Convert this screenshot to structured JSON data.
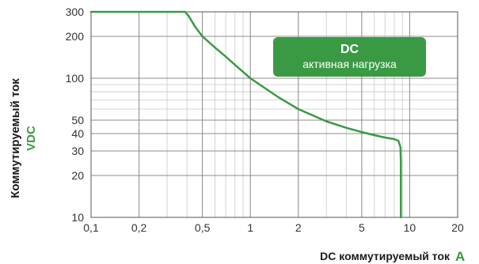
{
  "chart_data": {
    "type": "line",
    "xscale": "log",
    "yscale": "log",
    "xlim": [
      0.1,
      20
    ],
    "ylim": [
      10,
      300
    ],
    "x_ticks": [
      0.1,
      0.2,
      0.5,
      1,
      2,
      5,
      10,
      20
    ],
    "x_tick_labels": [
      "0,1",
      "0,2",
      "0,5",
      "1",
      "2",
      "5",
      "10",
      "20"
    ],
    "y_ticks": [
      10,
      20,
      30,
      40,
      50,
      100,
      200,
      300
    ],
    "y_tick_labels": [
      "10",
      "20",
      "30",
      "40",
      "50",
      "100",
      "200",
      "300"
    ],
    "grid": true,
    "xlabel": "DC коммутируемый ток",
    "xlabel_unit": "A",
    "ylabel": "Коммутируемый ток",
    "ylabel_unit": "VDC",
    "annotation": {
      "title": "DC",
      "subtitle": "активная нагрузка"
    },
    "colors": {
      "line": "#3a9a44",
      "badge": "#3a9a44",
      "grid": "#c8c8c8",
      "unit": "#3a9a44"
    },
    "series": [
      {
        "values": [
          {
            "x": 0.1,
            "y": 300
          },
          {
            "x": 0.39,
            "y": 300
          },
          {
            "x": 0.41,
            "y": 280
          },
          {
            "x": 0.45,
            "y": 235
          },
          {
            "x": 0.5,
            "y": 200
          },
          {
            "x": 0.6,
            "y": 166
          },
          {
            "x": 0.7,
            "y": 143
          },
          {
            "x": 0.8,
            "y": 125
          },
          {
            "x": 1,
            "y": 100
          },
          {
            "x": 1.5,
            "y": 73
          },
          {
            "x": 2,
            "y": 60
          },
          {
            "x": 3,
            "y": 49
          },
          {
            "x": 4,
            "y": 44
          },
          {
            "x": 5,
            "y": 41
          },
          {
            "x": 6,
            "y": 39
          },
          {
            "x": 7,
            "y": 37.5
          },
          {
            "x": 8,
            "y": 36.5
          },
          {
            "x": 8.5,
            "y": 35.5
          },
          {
            "x": 8.75,
            "y": 32
          },
          {
            "x": 8.8,
            "y": 25
          },
          {
            "x": 8.8,
            "y": 10
          }
        ]
      }
    ]
  }
}
